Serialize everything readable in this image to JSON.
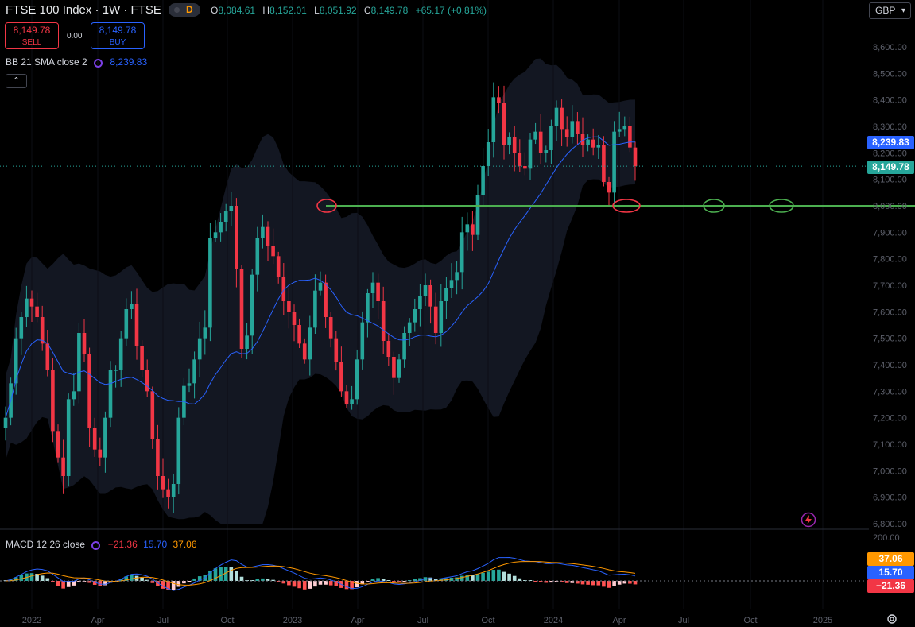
{
  "header": {
    "title": "FTSE 100 Index · 1W · FTSE",
    "market_status": "D",
    "ohlc": {
      "o_label": "O",
      "o": "8,084.61",
      "h_label": "H",
      "h": "8,152.01",
      "l_label": "L",
      "l": "8,051.92",
      "c_label": "C",
      "c": "8,149.78",
      "change": "+65.17 (+0.81%)"
    }
  },
  "trade": {
    "sell_price": "8,149.78",
    "sell_label": "SELL",
    "spread": "0.00",
    "buy_price": "8,149.78",
    "buy_label": "BUY"
  },
  "indicator_bb": {
    "label": "BB 21 SMA close 2",
    "value": "8,239.83"
  },
  "collapse_toggle": "⌃",
  "currency": {
    "selected": "GBP",
    "chevron": "▾"
  },
  "price_tags": {
    "bb_basis": "8,239.83",
    "last_price": "8,149.78"
  },
  "macd": {
    "label": "MACD 12 26 close",
    "hist": "−21.36",
    "macd": "15.70",
    "signal": "37.06"
  },
  "macd_tags": {
    "signal": "37.06",
    "macd": "15.70",
    "hist": "−21.36"
  },
  "colors": {
    "up": "#26a69a",
    "down": "#f23645",
    "bb_basis": "#2962ff",
    "support": "#4caf50",
    "signal": "#ff9800",
    "background": "#000000"
  },
  "icons": [
    "flash-icon",
    "settings-gear-icon",
    "chevron-down-icon",
    "indicator-circle-icon"
  ],
  "chart_data": {
    "type": "candlestick",
    "title": "FTSE 100 Index · 1W · FTSE",
    "price_axis": {
      "ticks": [
        "8,600.00",
        "8,500.00",
        "8,400.00",
        "8,300.00",
        "8,200.00",
        "8,100.00",
        "8,000.00",
        "7,900.00",
        "7,800.00",
        "7,700.00",
        "7,600.00",
        "7,500.00",
        "7,400.00",
        "7,300.00",
        "7,200.00",
        "7,100.00",
        "7,000.00",
        "6,900.00",
        "6,800.00"
      ],
      "range": [
        6800,
        8600
      ]
    },
    "time_axis": {
      "ticks": [
        "2022",
        "Apr",
        "Jul",
        "Oct",
        "2023",
        "Apr",
        "Jul",
        "Oct",
        "2024",
        "Apr",
        "Jul",
        "Oct",
        "2025"
      ]
    },
    "support_level": 8000,
    "last_price": 8149.78,
    "bb_basis_last": 8239.83,
    "series": [
      {
        "name": "FTSE 100 weekly close (approx.)",
        "values": [
          7200,
          7330,
          7500,
          7580,
          7650,
          7620,
          7580,
          7480,
          7380,
          7150,
          7050,
          6980,
          7270,
          7300,
          7520,
          7440,
          7160,
          7080,
          7050,
          7200,
          7380,
          7380,
          7500,
          7610,
          7630,
          7470,
          7380,
          7300,
          7120,
          6980,
          6930,
          6900,
          6950,
          7200,
          7320,
          7330,
          7420,
          7500,
          7540,
          7880,
          7900,
          7940,
          7980,
          8000,
          7760,
          7460,
          7510,
          7740,
          7880,
          7920,
          7850,
          7810,
          7730,
          7640,
          7600,
          7550,
          7480,
          7420,
          7540,
          7680,
          7710,
          7580,
          7500,
          7410,
          7300,
          7250,
          7270,
          7420,
          7560,
          7670,
          7710,
          7640,
          7490,
          7430,
          7350,
          7420,
          7520,
          7560,
          7610,
          7660,
          7700,
          7620,
          7520,
          7640,
          7690,
          7720,
          7750,
          7900,
          7930,
          7890,
          8040,
          8150,
          8240,
          8410,
          8390,
          8230,
          8260,
          8200,
          8150,
          8140,
          8250,
          8280,
          8200,
          8210,
          8300,
          8370,
          8290,
          8260,
          8320,
          8270,
          8230,
          8250,
          8220,
          8230,
          8090,
          8050,
          8280,
          8290,
          8300,
          8220,
          8149.78
        ]
      }
    ],
    "macd_axis": {
      "ticks": [
        "200.00"
      ]
    }
  }
}
